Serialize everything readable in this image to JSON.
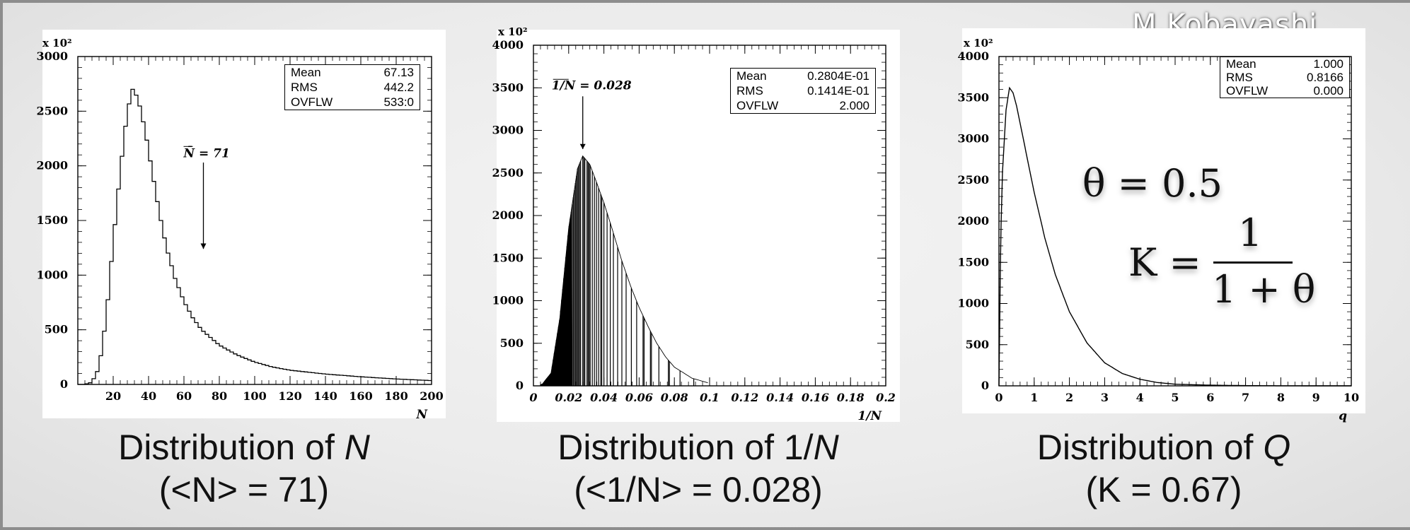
{
  "author": "M.Kobayashi",
  "chart_data": [
    {
      "type": "histogram",
      "x_axis_label": "N",
      "y_scale_label": "x 10²",
      "xlim": [
        0,
        200
      ],
      "ylim": [
        0,
        3000
      ],
      "x_ticks": [
        "20",
        "40",
        "60",
        "80",
        "100",
        "120",
        "140",
        "160",
        "180",
        "200"
      ],
      "y_ticks": [
        "0",
        "500",
        "1000",
        "1500",
        "2000",
        "2500",
        "3000"
      ],
      "stats": [
        [
          "Mean",
          "67.13"
        ],
        [
          "RMS",
          "442.2"
        ],
        [
          "OVFLW",
          "533:0"
        ]
      ],
      "annotation": "N̄ = 71",
      "annotation_x": 71,
      "curve": {
        "x": [
          0,
          4,
          8,
          12,
          16,
          20,
          24,
          28,
          31,
          34,
          38,
          42,
          46,
          50,
          55,
          60,
          65,
          70,
          80,
          90,
          100,
          110,
          120,
          140,
          160,
          180,
          200
        ],
        "y": [
          0,
          0,
          20,
          150,
          600,
          1300,
          1950,
          2500,
          2700,
          2620,
          2330,
          1950,
          1580,
          1260,
          970,
          760,
          610,
          500,
          360,
          270,
          205,
          160,
          130,
          95,
          70,
          50,
          35
        ]
      },
      "caption_line1": "Distribution of ",
      "caption_var": "N",
      "caption_line2": "(<N> = 71)"
    },
    {
      "type": "histogram",
      "x_axis_label": "1/N",
      "y_scale_label": "x 10²",
      "xlim": [
        0,
        0.2
      ],
      "ylim": [
        0,
        4000
      ],
      "x_ticks": [
        "0",
        "0.02",
        "0.04",
        "0.06",
        "0.08",
        "0.1",
        "0.12",
        "0.14",
        "0.16",
        "0.18",
        "0.2"
      ],
      "y_ticks": [
        "0",
        "500",
        "1000",
        "1500",
        "2000",
        "2500",
        "3000",
        "3500",
        "4000"
      ],
      "stats": [
        [
          "Mean",
          "0.2804E-01"
        ],
        [
          "RMS",
          "0.1414E-01"
        ],
        [
          "OVFLW",
          "2.000"
        ]
      ],
      "annotation": "1/N = 0.028",
      "annotation_x": 0.028,
      "curve": {
        "x": [
          0,
          0.005,
          0.01,
          0.015,
          0.02,
          0.025,
          0.028,
          0.032,
          0.036,
          0.04,
          0.045,
          0.05,
          0.055,
          0.06,
          0.065,
          0.07,
          0.075,
          0.08,
          0.09,
          0.1,
          0.12
        ],
        "y": [
          0,
          20,
          150,
          800,
          1850,
          2550,
          2700,
          2600,
          2380,
          2150,
          1820,
          1480,
          1180,
          920,
          700,
          500,
          340,
          220,
          90,
          30,
          0
        ]
      },
      "caption_line1": "Distribution of 1/",
      "caption_var": "N",
      "caption_line2": "(<1/N> = 0.028)"
    },
    {
      "type": "line",
      "x_axis_label": "q",
      "y_scale_label": "x 10²",
      "xlim": [
        0,
        10
      ],
      "ylim": [
        0,
        4000
      ],
      "x_ticks": [
        "0",
        "1",
        "2",
        "3",
        "4",
        "5",
        "6",
        "7",
        "8",
        "9",
        "10"
      ],
      "y_ticks": [
        "0",
        "500",
        "1000",
        "1500",
        "2000",
        "2500",
        "3000",
        "3500",
        "4000"
      ],
      "stats": [
        [
          "Mean",
          "1.000"
        ],
        [
          "RMS",
          "0.8166"
        ],
        [
          "OVFLW",
          "0.000"
        ]
      ],
      "curve": {
        "x": [
          0,
          0.05,
          0.1,
          0.2,
          0.3,
          0.4,
          0.5,
          0.7,
          1.0,
          1.3,
          1.6,
          2.0,
          2.5,
          3.0,
          3.5,
          4.0,
          4.5,
          5.0,
          6.0,
          7.0,
          8.0,
          9.0,
          10.0
        ],
        "y": [
          0,
          1800,
          2600,
          3350,
          3620,
          3560,
          3400,
          2980,
          2350,
          1800,
          1350,
          900,
          520,
          280,
          150,
          80,
          40,
          20,
          8,
          3,
          1,
          0,
          0
        ]
      },
      "caption_line1": "Distribution of ",
      "caption_var": "Q",
      "caption_line2": "(K = 0.67)"
    }
  ],
  "formula": {
    "theta": "θ = 0.5",
    "k_lhs": "K =",
    "k_num": "1",
    "k_den": "1 + θ"
  }
}
